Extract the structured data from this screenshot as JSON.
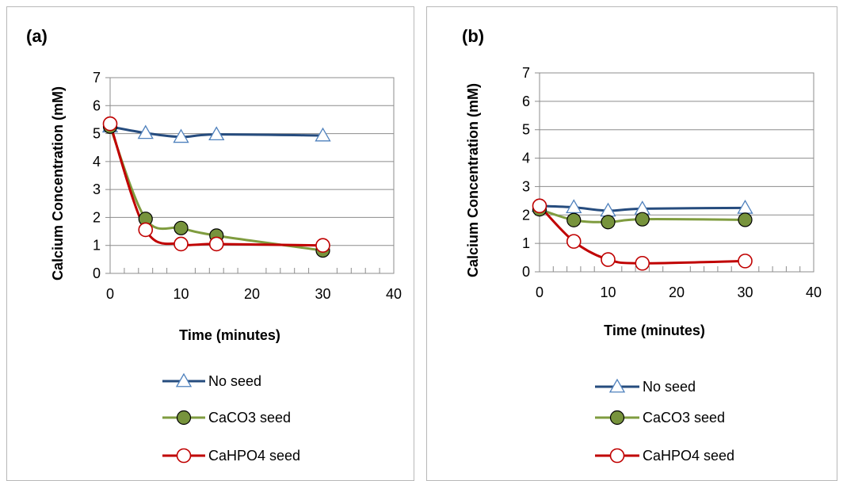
{
  "chart_data": [
    {
      "type": "line",
      "panel_label": "(a)",
      "xlabel": "Time (minutes)",
      "ylabel": "Calcium Concentration (mM)",
      "xlim": [
        0,
        40
      ],
      "ylim": [
        0,
        7
      ],
      "xticks": [
        "0",
        "10",
        "20",
        "30",
        "40"
      ],
      "yticks": [
        "0",
        "1",
        "2",
        "3",
        "4",
        "5",
        "6",
        "7"
      ],
      "grid": "horizontal",
      "legend_position": "bottom",
      "x": [
        0,
        5,
        10,
        15,
        30
      ],
      "series": [
        {
          "name": "No seed",
          "values": [
            5.25,
            5.02,
            4.88,
            4.97,
            4.93
          ],
          "color": "#264c7e",
          "marker": "triangle"
        },
        {
          "name": "CaCO3 seed",
          "values": [
            5.25,
            1.95,
            1.62,
            1.35,
            0.82
          ],
          "color": "#7f9c3f",
          "marker": "filled-circle"
        },
        {
          "name": "CaHPO4 seed",
          "values": [
            5.35,
            1.56,
            1.05,
            1.05,
            1.0
          ],
          "color": "#c00000",
          "marker": "open-circle"
        }
      ]
    },
    {
      "type": "line",
      "panel_label": "(b)",
      "xlabel": "Time (minutes)",
      "ylabel": "Calcium Concentration (mM)",
      "xlim": [
        0,
        40
      ],
      "ylim": [
        0,
        7
      ],
      "xticks": [
        "0",
        "10",
        "20",
        "30",
        "40"
      ],
      "yticks": [
        "0",
        "1",
        "2",
        "3",
        "4",
        "5",
        "6",
        "7"
      ],
      "grid": "horizontal",
      "legend_position": "bottom",
      "x": [
        0,
        5,
        10,
        15,
        30
      ],
      "series": [
        {
          "name": "No seed",
          "values": [
            2.32,
            2.27,
            2.15,
            2.22,
            2.25
          ],
          "color": "#264c7e",
          "marker": "triangle"
        },
        {
          "name": "CaCO3 seed",
          "values": [
            2.2,
            1.82,
            1.75,
            1.85,
            1.83
          ],
          "color": "#7f9c3f",
          "marker": "filled-circle"
        },
        {
          "name": "CaHPO4 seed",
          "values": [
            2.32,
            1.07,
            0.43,
            0.3,
            0.38
          ],
          "color": "#c00000",
          "marker": "open-circle"
        }
      ]
    }
  ]
}
